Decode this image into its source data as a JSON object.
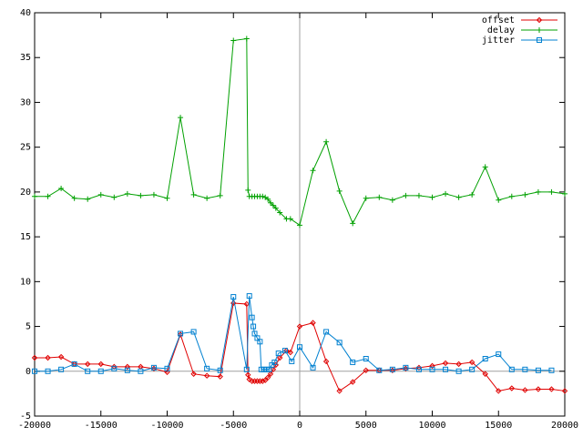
{
  "chart_data": {
    "type": "line",
    "xlim": [
      -20000,
      20000
    ],
    "xticks": [
      -20000,
      -15000,
      -10000,
      -5000,
      0,
      5000,
      10000,
      15000,
      20000
    ],
    "ylim": [
      -5,
      40
    ],
    "yticks": [
      -5,
      0,
      5,
      10,
      15,
      20,
      25,
      30,
      35,
      40
    ],
    "zero_axes": true,
    "legend": "top-right",
    "series": [
      {
        "name": "offset",
        "color": "#e00000",
        "marker": "diamond",
        "x": [
          -20000,
          -19000,
          -18000,
          -17000,
          -16000,
          -15000,
          -14000,
          -13000,
          -12000,
          -11000,
          -10000,
          -9000,
          -8000,
          -7000,
          -6000,
          -5000,
          -4000,
          -3900,
          -3800,
          -3600,
          -3400,
          -3200,
          -3000,
          -2800,
          -2600,
          -2400,
          -2200,
          -2000,
          -1800,
          -1500,
          -1000,
          -700,
          0,
          1000,
          2000,
          3000,
          4000,
          5000,
          6000,
          7000,
          8000,
          9000,
          10000,
          11000,
          12000,
          13000,
          14000,
          15000,
          16000,
          17000,
          18000,
          19000,
          20000
        ],
        "values": [
          1.5,
          1.5,
          1.6,
          0.8,
          0.8,
          0.8,
          0.5,
          0.5,
          0.5,
          0.3,
          -0.1,
          4.1,
          -0.3,
          -0.5,
          -0.6,
          7.6,
          7.5,
          -0.4,
          -0.9,
          -1.1,
          -1.1,
          -1.1,
          -1.1,
          -1.1,
          -1.0,
          -0.7,
          -0.3,
          0.2,
          0.7,
          1.5,
          2.3,
          2.1,
          5.0,
          5.4,
          1.1,
          -2.2,
          -1.2,
          0.1,
          0.1,
          0.1,
          0.3,
          0.4,
          0.6,
          0.9,
          0.8,
          1.0,
          -0.3,
          -2.2,
          -1.9,
          -2.1,
          -2.0,
          -2.0,
          -2.2
        ]
      },
      {
        "name": "delay",
        "color": "#00a000",
        "marker": "plus",
        "x": [
          -20000,
          -19000,
          -18000,
          -17000,
          -16000,
          -15000,
          -14000,
          -13000,
          -12000,
          -11000,
          -10000,
          -9000,
          -8000,
          -7000,
          -6000,
          -5000,
          -4000,
          -3900,
          -3800,
          -3600,
          -3400,
          -3200,
          -3000,
          -2800,
          -2600,
          -2400,
          -2200,
          -2000,
          -1800,
          -1500,
          -1000,
          -700,
          0,
          1000,
          2000,
          3000,
          4000,
          5000,
          6000,
          7000,
          8000,
          9000,
          10000,
          11000,
          12000,
          13000,
          14000,
          15000,
          16000,
          17000,
          18000,
          19000,
          20000
        ],
        "values": [
          19.5,
          19.5,
          20.4,
          19.3,
          19.2,
          19.7,
          19.4,
          19.8,
          19.6,
          19.7,
          19.3,
          28.3,
          19.7,
          19.3,
          19.6,
          36.9,
          37.1,
          20.2,
          19.5,
          19.5,
          19.5,
          19.5,
          19.5,
          19.5,
          19.4,
          19.2,
          18.8,
          18.5,
          18.2,
          17.7,
          17.0,
          17.0,
          16.3,
          22.4,
          25.6,
          20.1,
          16.5,
          19.3,
          19.4,
          19.1,
          19.6,
          19.6,
          19.4,
          19.8,
          19.4,
          19.7,
          22.8,
          19.1,
          19.5,
          19.7,
          20.0,
          20.0,
          19.8
        ]
      },
      {
        "name": "jitter",
        "color": "#0080d0",
        "marker": "square",
        "x": [
          -20000,
          -19000,
          -18000,
          -17000,
          -16000,
          -15000,
          -14000,
          -13000,
          -12000,
          -11000,
          -10000,
          -9000,
          -8000,
          -7000,
          -6000,
          -5000,
          -4000,
          -3800,
          -3600,
          -3500,
          -3400,
          -3200,
          -3000,
          -2900,
          -2700,
          -2500,
          -2300,
          -2100,
          -1900,
          -1600,
          -1100,
          -600,
          0,
          1000,
          2000,
          3000,
          4000,
          5000,
          6000,
          7000,
          8000,
          9000,
          10000,
          11000,
          12000,
          13000,
          14000,
          15000,
          16000,
          17000,
          18000,
          19000
        ],
        "values": [
          0,
          0,
          0.2,
          0.8,
          0,
          0,
          0.3,
          0.1,
          0,
          0.4,
          0.3,
          4.2,
          4.4,
          0.3,
          0.1,
          8.3,
          0.2,
          8.4,
          6.0,
          5.0,
          4.2,
          3.7,
          3.3,
          0.2,
          0.2,
          0.2,
          0.2,
          0.7,
          1.0,
          2.0,
          2.3,
          1.1,
          2.7,
          0.4,
          4.4,
          3.2,
          1.0,
          1.4,
          0.1,
          0.2,
          0.4,
          0.2,
          0.2,
          0.2,
          0,
          0.2,
          1.4,
          1.9,
          0.2,
          0.2,
          0.1,
          0.1
        ]
      }
    ]
  }
}
